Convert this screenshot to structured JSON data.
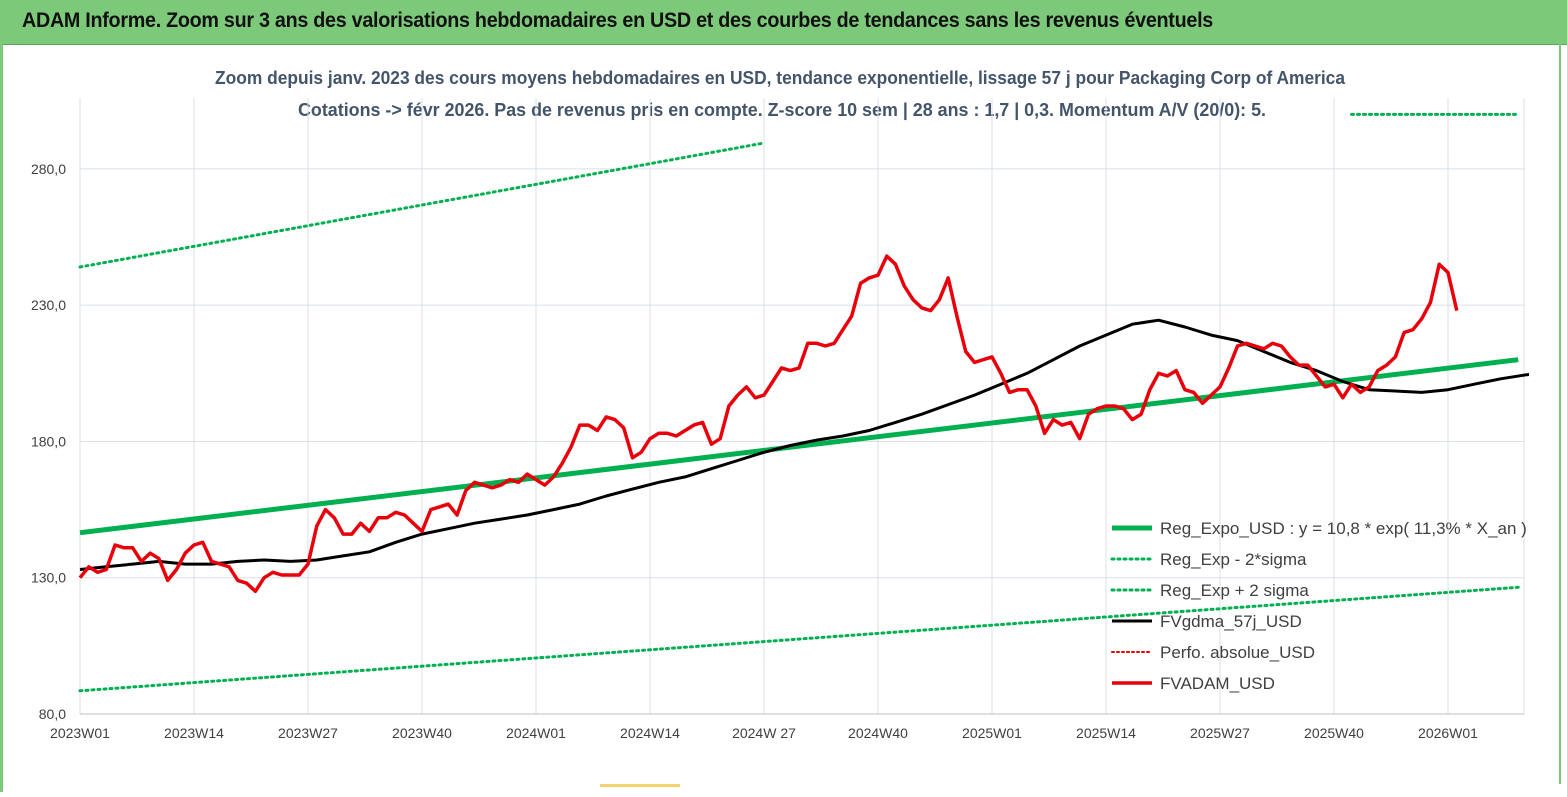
{
  "banner": {
    "title": "ADAM Informe. Zoom sur 3 ans des valorisations hebdomadaires en USD et des courbes de tendances sans les revenus éventuels"
  },
  "colors": {
    "banner_bg": "#7dc97a",
    "reg_expo": "#00b050",
    "reg_bands": "#00b050",
    "fv_gdma": "#000000",
    "perfo": "#e00000",
    "fv_adam": "#e8000b",
    "grid": "#d9e1e7",
    "axis_text": "#404040"
  },
  "chart_data": {
    "type": "line",
    "title": "Zoom depuis janv. 2023 des cours moyens hebdomadaires en USD, tendance exponentielle, lissage 57 j pour Packaging Corp of America",
    "subtitle": "Cotations -> févr 2026. Pas de revenus pris en compte. Z-score 10 sem | 28 ans : 1,7 | 0,3. Momentum A/V (20/0): 5.",
    "x_ticks": [
      "2023W01",
      "2023W14",
      "2023W27",
      "2023W40",
      "2024W01",
      "2024W14",
      "2024W 27",
      "2024W40",
      "2025W01",
      "2025W14",
      "2025W27",
      "2025W40",
      "2026W01"
    ],
    "y_ticks": [
      "80,0",
      "130,0",
      "180,0",
      "230,0",
      "280,0"
    ],
    "ylim": [
      80,
      295
    ],
    "x_range_weeks": [
      0,
      165
    ],
    "grid": true,
    "legend_position": "right",
    "series": [
      {
        "name": "Reg_Expo_USD : y = 10,8 * exp( 11,3% * X_an )",
        "style": "thick",
        "points": [
          [
            0,
            146.5
          ],
          [
            164,
            210
          ]
        ]
      },
      {
        "name": "Reg_Exp - 2*sigma",
        "style": "dotted",
        "points": [
          [
            0,
            88.5
          ],
          [
            164,
            126.5
          ]
        ]
      },
      {
        "name": "Reg_Exp + 2 sigma",
        "style": "dotted",
        "segments": [
          [
            [
              0,
              244
            ],
            [
              78,
              289.5
            ]
          ],
          [
            [
              145,
              300
            ],
            [
              164,
              300
            ]
          ]
        ]
      },
      {
        "name": "FVgdma_57j_USD",
        "style": "normal",
        "points": [
          [
            0,
            133
          ],
          [
            3,
            134
          ],
          [
            6,
            135
          ],
          [
            9,
            136
          ],
          [
            12,
            135
          ],
          [
            15,
            135
          ],
          [
            18,
            136
          ],
          [
            21,
            136.5
          ],
          [
            24,
            136
          ],
          [
            27,
            136.5
          ],
          [
            30,
            138
          ],
          [
            33,
            139.5
          ],
          [
            36,
            143
          ],
          [
            39,
            146
          ],
          [
            42,
            148
          ],
          [
            45,
            150
          ],
          [
            48,
            151.5
          ],
          [
            51,
            153
          ],
          [
            54,
            155
          ],
          [
            57,
            157
          ],
          [
            60,
            160
          ],
          [
            63,
            162.5
          ],
          [
            66,
            165
          ],
          [
            69,
            167
          ],
          [
            72,
            170
          ],
          [
            75,
            173
          ],
          [
            78,
            176
          ],
          [
            81,
            178.5
          ],
          [
            84,
            180.5
          ],
          [
            87,
            182
          ],
          [
            90,
            184
          ],
          [
            93,
            187
          ],
          [
            96,
            190
          ],
          [
            99,
            193.5
          ],
          [
            102,
            197
          ],
          [
            105,
            201
          ],
          [
            108,
            205
          ],
          [
            111,
            210
          ],
          [
            114,
            215
          ],
          [
            117,
            219
          ],
          [
            120,
            223
          ],
          [
            123,
            224.5
          ],
          [
            126,
            222
          ],
          [
            129,
            219
          ],
          [
            132,
            217
          ],
          [
            135,
            213
          ],
          [
            138,
            209
          ],
          [
            141,
            206
          ],
          [
            144,
            202
          ],
          [
            147,
            199
          ],
          [
            150,
            198.5
          ],
          [
            153,
            198
          ],
          [
            156,
            199
          ],
          [
            159,
            201
          ],
          [
            162,
            203
          ],
          [
            165,
            204.5
          ],
          [
            168,
            205.5
          ],
          [
            171,
            206
          ],
          [
            174,
            207
          ],
          [
            177,
            207.5
          ],
          [
            180,
            208
          ],
          [
            183,
            208
          ],
          [
            186,
            208.5
          ],
          [
            189,
            210
          ],
          [
            192,
            213
          ],
          [
            195,
            217
          ],
          [
            198,
            221
          ],
          [
            201,
            224
          ],
          [
            204,
            224
          ]
        ]
      },
      {
        "name": "Perfo. absolue_USD",
        "style": "dotted",
        "points": []
      },
      {
        "name": "FVADAM_USD",
        "style": "thick",
        "points": [
          [
            0,
            130
          ],
          [
            1,
            134
          ],
          [
            2,
            132
          ],
          [
            3,
            133
          ],
          [
            4,
            142
          ],
          [
            5,
            141
          ],
          [
            6,
            141
          ],
          [
            7,
            136
          ],
          [
            8,
            139
          ],
          [
            9,
            137
          ],
          [
            10,
            129
          ],
          [
            11,
            133
          ],
          [
            12,
            139
          ],
          [
            13,
            142
          ],
          [
            14,
            143
          ],
          [
            15,
            136
          ],
          [
            16,
            135
          ],
          [
            17,
            134
          ],
          [
            18,
            129
          ],
          [
            19,
            128
          ],
          [
            20,
            125
          ],
          [
            21,
            130
          ],
          [
            22,
            132
          ],
          [
            23,
            131
          ],
          [
            24,
            131
          ],
          [
            25,
            131
          ],
          [
            26,
            135
          ],
          [
            27,
            149
          ],
          [
            28,
            155
          ],
          [
            29,
            152
          ],
          [
            30,
            146
          ],
          [
            31,
            146
          ],
          [
            32,
            150
          ],
          [
            33,
            147
          ],
          [
            34,
            152
          ],
          [
            35,
            152
          ],
          [
            36,
            154
          ],
          [
            37,
            153
          ],
          [
            38,
            150
          ],
          [
            39,
            147
          ],
          [
            40,
            155
          ],
          [
            41,
            156
          ],
          [
            42,
            157
          ],
          [
            43,
            153
          ],
          [
            44,
            162
          ],
          [
            45,
            165
          ],
          [
            46,
            164
          ],
          [
            47,
            163
          ],
          [
            48,
            164
          ],
          [
            49,
            166
          ],
          [
            50,
            165
          ],
          [
            51,
            168
          ],
          [
            52,
            166
          ],
          [
            53,
            164
          ],
          [
            54,
            167
          ],
          [
            55,
            172
          ],
          [
            56,
            178
          ],
          [
            57,
            186
          ],
          [
            58,
            186
          ],
          [
            59,
            184
          ],
          [
            60,
            189
          ],
          [
            61,
            188
          ],
          [
            62,
            185
          ],
          [
            63,
            174
          ],
          [
            64,
            176
          ],
          [
            65,
            181
          ],
          [
            66,
            183
          ],
          [
            67,
            183
          ],
          [
            68,
            182
          ],
          [
            69,
            184
          ],
          [
            70,
            186
          ],
          [
            71,
            187
          ],
          [
            72,
            179
          ],
          [
            73,
            181
          ],
          [
            74,
            193
          ],
          [
            75,
            197
          ],
          [
            76,
            200
          ],
          [
            77,
            196
          ],
          [
            78,
            197
          ],
          [
            79,
            202
          ],
          [
            80,
            207
          ],
          [
            81,
            206
          ],
          [
            82,
            207
          ],
          [
            83,
            216
          ],
          [
            84,
            216
          ],
          [
            85,
            215
          ],
          [
            86,
            216
          ],
          [
            87,
            221
          ],
          [
            88,
            226
          ],
          [
            89,
            238
          ],
          [
            90,
            240
          ],
          [
            91,
            241
          ],
          [
            92,
            248
          ],
          [
            93,
            245
          ],
          [
            94,
            237
          ],
          [
            95,
            232
          ],
          [
            96,
            229
          ],
          [
            97,
            228
          ],
          [
            98,
            232
          ],
          [
            99,
            240
          ],
          [
            100,
            226
          ],
          [
            101,
            213
          ],
          [
            102,
            209
          ],
          [
            103,
            210
          ],
          [
            104,
            211
          ],
          [
            105,
            205
          ],
          [
            106,
            198
          ],
          [
            107,
            199
          ],
          [
            108,
            199
          ],
          [
            109,
            193
          ],
          [
            110,
            183
          ],
          [
            111,
            188
          ],
          [
            112,
            186
          ],
          [
            113,
            187
          ],
          [
            114,
            181
          ],
          [
            115,
            190
          ],
          [
            116,
            192
          ],
          [
            117,
            193
          ],
          [
            118,
            193
          ],
          [
            119,
            192
          ],
          [
            120,
            188
          ],
          [
            121,
            190
          ],
          [
            122,
            199
          ],
          [
            123,
            205
          ],
          [
            124,
            204
          ],
          [
            125,
            206
          ],
          [
            126,
            199
          ],
          [
            127,
            198
          ],
          [
            128,
            194
          ],
          [
            129,
            197
          ],
          [
            130,
            200
          ],
          [
            131,
            207
          ],
          [
            132,
            215
          ],
          [
            133,
            216
          ],
          [
            134,
            215
          ],
          [
            135,
            214
          ],
          [
            136,
            216
          ],
          [
            137,
            215
          ],
          [
            138,
            211
          ],
          [
            139,
            208
          ],
          [
            140,
            208
          ],
          [
            141,
            204
          ],
          [
            142,
            200
          ],
          [
            143,
            201
          ],
          [
            144,
            196
          ],
          [
            145,
            201
          ],
          [
            146,
            198
          ],
          [
            147,
            200
          ],
          [
            148,
            206
          ],
          [
            149,
            208
          ],
          [
            150,
            211
          ],
          [
            151,
            220
          ],
          [
            152,
            221
          ],
          [
            153,
            225
          ],
          [
            154,
            231
          ],
          [
            155,
            245
          ],
          [
            156,
            242
          ],
          [
            157,
            228
          ]
        ]
      }
    ]
  }
}
